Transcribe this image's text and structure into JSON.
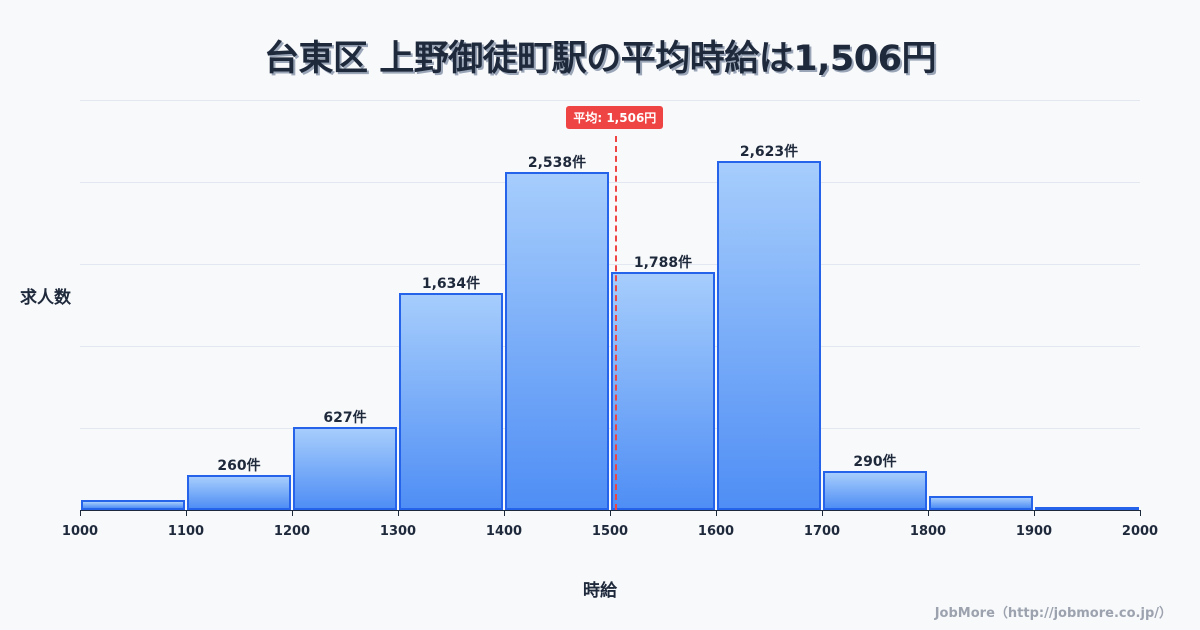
{
  "title": "台東区 上野御徒町駅の平均時給は1,506円",
  "ylabel": "求人数",
  "xlabel": "時給",
  "mean_badge": "平均: 1,506円",
  "credit": "JobMore（http://jobmore.co.jp/）",
  "colors": {
    "bar_border": "#2563eb",
    "bar_top": "#a6cdfc",
    "bar_bottom": "#4f8ef5",
    "mean": "#ef4444",
    "text": "#1e293b"
  },
  "chart_data": {
    "type": "bar",
    "title": "台東区 上野御徒町駅の平均時給は1,506円",
    "xlabel": "時給",
    "ylabel": "求人数",
    "categories": [
      "1000-1100",
      "1100-1200",
      "1200-1300",
      "1300-1400",
      "1400-1500",
      "1500-1600",
      "1600-1700",
      "1700-1800",
      "1800-1900",
      "1900-2000"
    ],
    "x_ticks": [
      "1000",
      "1100",
      "1200",
      "1300",
      "1400",
      "1500",
      "1600",
      "1700",
      "1800",
      "1900",
      "2000"
    ],
    "values": [
      75,
      260,
      627,
      1634,
      2538,
      1788,
      2623,
      290,
      105,
      20
    ],
    "value_labels": [
      "",
      "260件",
      "627件",
      "1,634件",
      "2,538件",
      "1,788件",
      "2,623件",
      "290件",
      "",
      ""
    ],
    "mean": 1506,
    "mean_label": "平均: 1,506円",
    "xlim": [
      1000,
      2000
    ],
    "ylim": [
      0,
      3080
    ],
    "grid": true,
    "legend": "none"
  }
}
